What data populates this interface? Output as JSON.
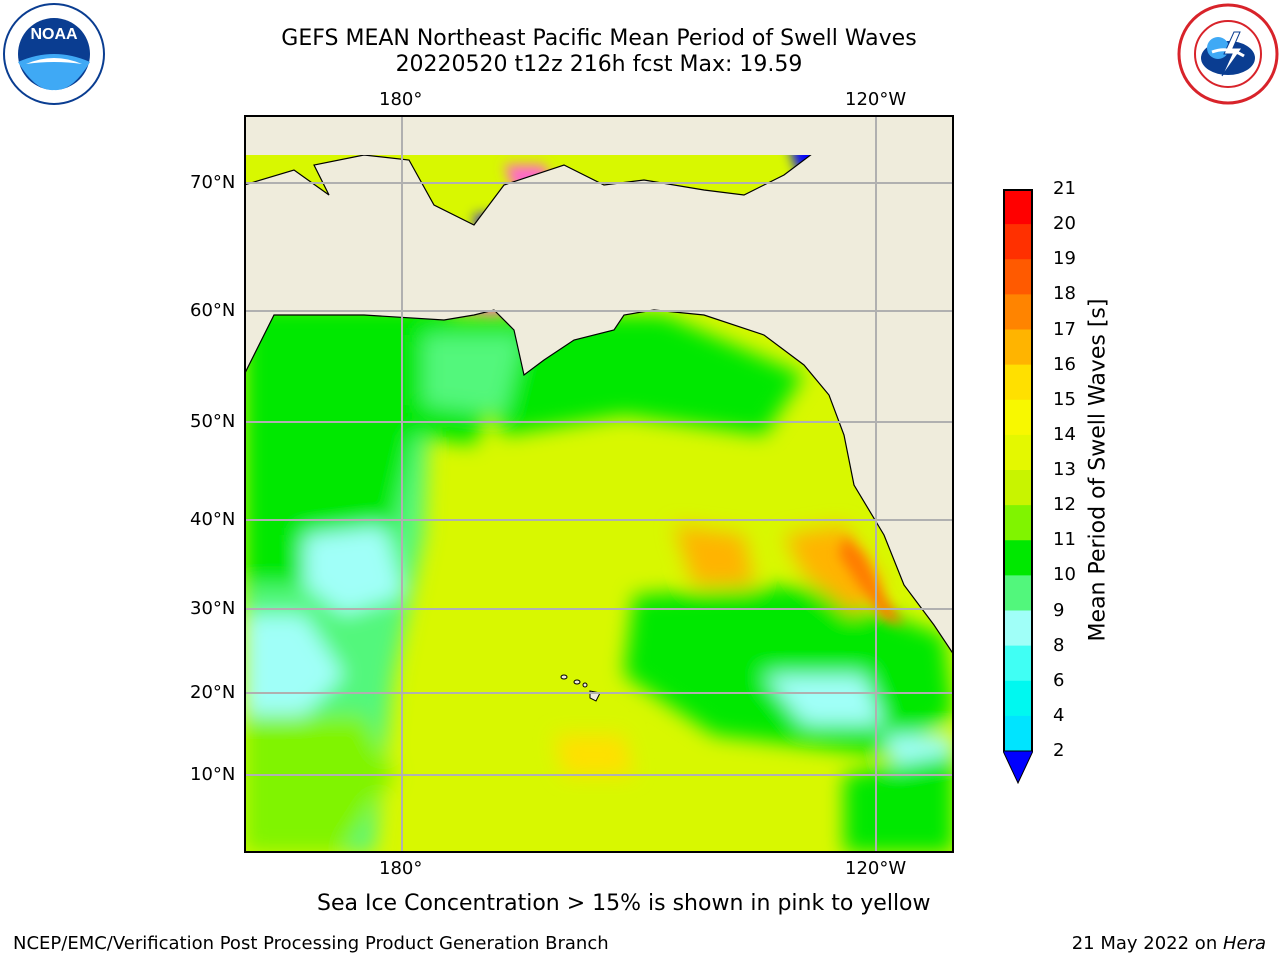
{
  "title": {
    "line1": "GEFS MEAN Northeast Pacific Mean Period of Swell Waves",
    "line2": "20220520 t12z 216h fcst   Max: 19.59"
  },
  "logos": {
    "left": {
      "text": "NOAA",
      "ring_text": "NATIONAL OCEANIC AND ATMOSPHERIC ADMINISTRATION · U.S. DEPARTMENT OF COMMERCE",
      "color": "#0a3d91"
    },
    "right": {
      "ring_text": "NATIONAL WEATHER SERVICE",
      "color": "#d8232a"
    }
  },
  "map": {
    "top_longitude_labels": [
      "180°",
      "120°W"
    ],
    "bottom_longitude_labels": [
      "180°",
      "120°W"
    ],
    "latitude_labels": [
      "70°N",
      "60°N",
      "50°N",
      "40°N",
      "30°N",
      "20°N",
      "10°N"
    ],
    "land_color": "#efecdc",
    "grid_color": "#b0b0b0"
  },
  "colorbar": {
    "title": "Mean Period of Swell Waves [s]",
    "ticks": [
      "21",
      "20",
      "19",
      "18",
      "17",
      "16",
      "15",
      "14",
      "13",
      "12",
      "11",
      "10",
      "9",
      "8",
      "6",
      "4",
      "2"
    ],
    "colors": [
      "#ff0000",
      "#ff3000",
      "#ff5a00",
      "#ff8400",
      "#ffb400",
      "#ffe000",
      "#f8f800",
      "#e4f800",
      "#c8f400",
      "#80f400",
      "#00e800",
      "#52f77c",
      "#a0fff8",
      "#40fff4",
      "#00f8f0",
      "#00e4ff",
      "#0080ff",
      "#0000ff"
    ]
  },
  "note": "Sea Ice Concentration > 15% is shown in pink to yellow",
  "footer": {
    "left": "NCEP/EMC/Verification Post Processing Product Generation Branch",
    "right_prefix": "21 May 2022 on ",
    "right_host": "Hera"
  }
}
